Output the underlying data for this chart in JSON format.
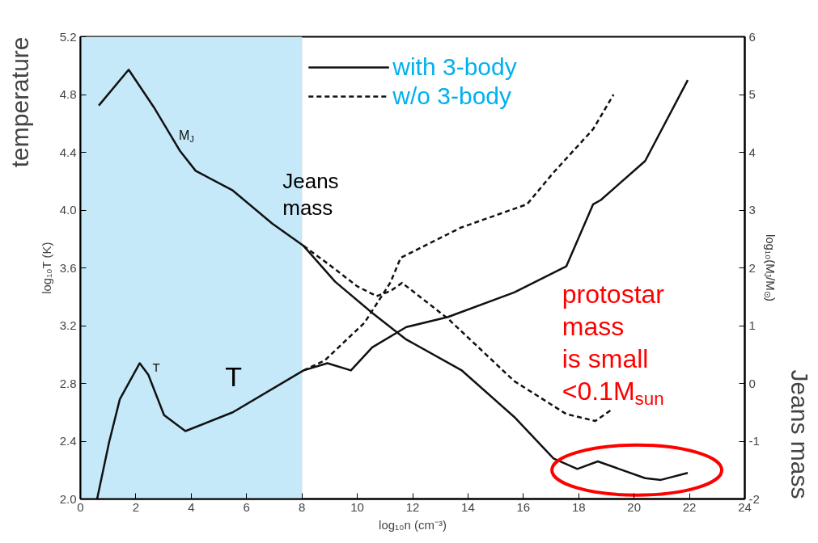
{
  "chart_data": {
    "type": "line",
    "xlabel": "log₁₀n (cm⁻³)",
    "ylabel": "log₁₀T (K)",
    "y2label": "log₁₀(M$_{J}$/M$_{⊙}$)",
    "xlim": [
      0,
      24
    ],
    "xticks": [
      0,
      2,
      4,
      6,
      8,
      10,
      12,
      14,
      16,
      18,
      20,
      22,
      24
    ],
    "ylim": [
      2.0,
      5.2
    ],
    "yticks": [
      {
        "value": 2,
        "label": "2.0"
      },
      2.4,
      2.8,
      3.2,
      3.6,
      {
        "value": 4,
        "label": "4.0"
      },
      4.4,
      4.8,
      5.2
    ],
    "y2lim": [
      -2,
      6
    ],
    "y2ticks": [
      -2,
      -1,
      0,
      1,
      2,
      3,
      4,
      5,
      6
    ],
    "grid": false,
    "legend": "top",
    "marker": "none",
    "series": [
      {
        "name": "with 3-body",
        "color": "#111111",
        "line_style": "solid",
        "x": [
          0.6,
          1.03,
          1.42,
          2.14,
          2.45,
          3.02,
          3.79,
          5.5,
          8.06,
          8.92,
          9.77,
          10.54,
          11.77,
          13.28,
          15.67,
          17.55,
          18.52,
          18.8,
          20.4,
          21.94
        ],
        "values": [
          2.0,
          2.39,
          2.69,
          2.94,
          2.86,
          2.58,
          2.47,
          2.6,
          2.89,
          2.94,
          2.89,
          3.05,
          3.19,
          3.26,
          3.43,
          3.61,
          4.04,
          4.07,
          4.34,
          4.9
        ]
      },
      {
        "name": "w/o 3-body",
        "color": "#111111",
        "line_style": "dashed",
        "x": [
          8.06,
          8.83,
          10.26,
          10.9,
          11.2,
          11.57,
          13.76,
          16.13,
          17.09,
          18.52,
          19.26
        ],
        "values": [
          2.89,
          2.96,
          3.22,
          3.41,
          3.5,
          3.67,
          3.88,
          4.04,
          4.26,
          4.56,
          4.8
        ]
      },
      {
        "color": "#111111",
        "line_style": "solid",
        "axis": "y2",
        "x": [
          0.66,
          1.74,
          2.65,
          3.6,
          4.16,
          5.5,
          6.92,
          8.06,
          9.2,
          10.54,
          11.77,
          13.76,
          15.67,
          17.09,
          17.95,
          18.69,
          20.4,
          20.97,
          21.94
        ],
        "values": [
          4.81,
          5.43,
          4.78,
          4.02,
          3.68,
          3.34,
          2.77,
          2.38,
          1.76,
          1.22,
          0.76,
          0.23,
          -0.58,
          -1.3,
          -1.48,
          -1.35,
          -1.64,
          -1.67,
          -1.55
        ]
      },
      {
        "color": "#111111",
        "line_style": "dashed",
        "axis": "y2",
        "x": [
          8.06,
          9.0,
          10.0,
          10.7,
          11.2,
          11.62,
          13.28,
          15.67,
          17.55,
          18.6,
          19.17
        ],
        "values": [
          2.38,
          2.05,
          1.68,
          1.51,
          1.6,
          1.74,
          1.12,
          0.04,
          -0.53,
          -0.65,
          -0.46
        ]
      }
    ],
    "bands": [
      {
        "axis": "x",
        "from": 0,
        "to": 8,
        "color": "#c5e9f8"
      }
    ],
    "annotations": [
      "temperature",
      "Jeans mass",
      "M$_{J}$",
      "T",
      "T",
      "Jeans\nmass",
      "protostar\nmass\nis small\n<0.1M$_{sun}$"
    ]
  }
}
